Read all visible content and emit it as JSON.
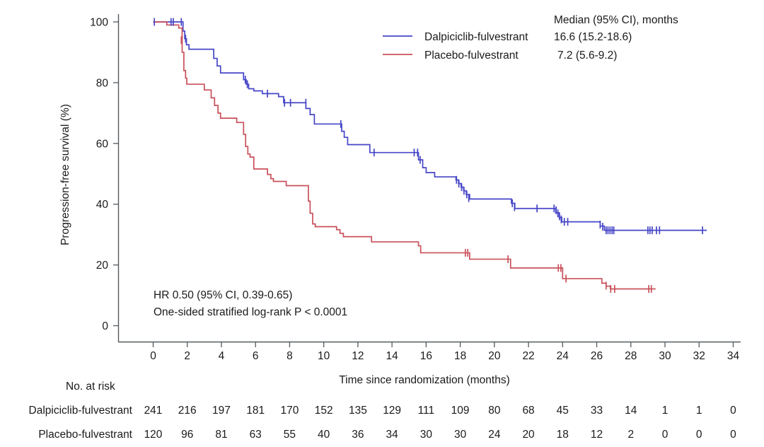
{
  "figure": {
    "background": "#ffffff",
    "text_color": "#1a1a1a",
    "axis_color": "#555a5e"
  },
  "chart_data": {
    "type": "line",
    "subtype": "kaplan-meier-step",
    "title": "",
    "xlabel": "Time since randomization (months)",
    "ylabel": "Progression-free survival (%)",
    "xlim": [
      0,
      34
    ],
    "ylim": [
      0,
      100
    ],
    "xticks": [
      0,
      2,
      4,
      6,
      8,
      10,
      12,
      14,
      16,
      18,
      20,
      22,
      24,
      26,
      28,
      30,
      32,
      34
    ],
    "yticks": [
      0,
      20,
      40,
      60,
      80,
      100
    ],
    "grid": false,
    "legend": {
      "position": "top-right",
      "header": "Median (95% CI), months",
      "entries": [
        {
          "label": "Dalpiciclib-fulvestrant",
          "median": "16.6 (15.2-18.6)",
          "color": "#4646c8"
        },
        {
          "label": "Placebo-fulvestrant",
          "median": "7.2 (5.6-9.2)",
          "color": "#c9505a"
        }
      ]
    },
    "annotations": [
      "HR 0.50 (95% CI, 0.39-0.65)",
      "One-sided stratified log-rank P < 0.0001"
    ],
    "series": [
      {
        "name": "Dalpiciclib-fulvestrant",
        "color": "#4646c8",
        "end_time": 32.45,
        "steps": [
          [
            0,
            100
          ],
          [
            1.75,
            97
          ],
          [
            1.85,
            94.5
          ],
          [
            1.95,
            92.5
          ],
          [
            2.1,
            91
          ],
          [
            3.55,
            88
          ],
          [
            3.75,
            85.5
          ],
          [
            3.95,
            83.2
          ],
          [
            5.3,
            81
          ],
          [
            5.45,
            79.5
          ],
          [
            5.6,
            78
          ],
          [
            5.9,
            77.3
          ],
          [
            6.4,
            76.4
          ],
          [
            7.35,
            75.4
          ],
          [
            7.65,
            73.4
          ],
          [
            8.95,
            71.5
          ],
          [
            9.2,
            69.5
          ],
          [
            9.45,
            66.4
          ],
          [
            11.05,
            64
          ],
          [
            11.2,
            62
          ],
          [
            11.4,
            59.6
          ],
          [
            12.7,
            57
          ],
          [
            15.55,
            54.6
          ],
          [
            15.8,
            52
          ],
          [
            16.0,
            50.4
          ],
          [
            16.5,
            49
          ],
          [
            17.75,
            48
          ],
          [
            17.9,
            46.8
          ],
          [
            18.05,
            45.6
          ],
          [
            18.2,
            44.4
          ],
          [
            18.35,
            43.2
          ],
          [
            18.55,
            41.7
          ],
          [
            21.0,
            40.3
          ],
          [
            21.2,
            38.6
          ],
          [
            23.6,
            37.2
          ],
          [
            23.8,
            35.6
          ],
          [
            23.95,
            34.2
          ],
          [
            26.2,
            32.8
          ],
          [
            26.45,
            31.4
          ]
        ],
        "censors": [
          [
            0.07,
            100
          ],
          [
            1.05,
            100
          ],
          [
            1.18,
            100
          ],
          [
            1.65,
            100
          ],
          [
            1.9,
            94.5
          ],
          [
            5.4,
            81
          ],
          [
            5.52,
            79.5
          ],
          [
            6.7,
            76.4
          ],
          [
            7.7,
            73.4
          ],
          [
            8.05,
            73.4
          ],
          [
            8.95,
            73.4
          ],
          [
            11.0,
            66.4
          ],
          [
            12.95,
            57
          ],
          [
            15.3,
            57
          ],
          [
            15.5,
            57
          ],
          [
            15.65,
            54.6
          ],
          [
            17.78,
            48
          ],
          [
            17.92,
            46.8
          ],
          [
            18.08,
            45.6
          ],
          [
            18.22,
            44.4
          ],
          [
            18.38,
            43.2
          ],
          [
            18.5,
            42
          ],
          [
            21.05,
            40.3
          ],
          [
            21.18,
            39
          ],
          [
            22.5,
            38.6
          ],
          [
            23.5,
            38.6
          ],
          [
            23.62,
            38
          ],
          [
            23.72,
            37
          ],
          [
            23.82,
            36
          ],
          [
            23.92,
            35
          ],
          [
            24.1,
            34.2
          ],
          [
            24.3,
            34.2
          ],
          [
            26.2,
            33.3
          ],
          [
            26.35,
            32.6
          ],
          [
            26.55,
            31.4
          ],
          [
            26.66,
            31.4
          ],
          [
            26.78,
            31.4
          ],
          [
            26.9,
            31.4
          ],
          [
            27.0,
            31.4
          ],
          [
            29.0,
            31.4
          ],
          [
            29.12,
            31.4
          ],
          [
            29.25,
            31.4
          ],
          [
            29.5,
            31.4
          ],
          [
            29.68,
            31.4
          ],
          [
            32.2,
            31.4
          ]
        ]
      },
      {
        "name": "Placebo-fulvestrant",
        "color": "#c9505a",
        "end_time": 29.45,
        "steps": [
          [
            0,
            100
          ],
          [
            0.8,
            99
          ],
          [
            1.5,
            98
          ],
          [
            1.7,
            90
          ],
          [
            1.8,
            84
          ],
          [
            1.9,
            81.5
          ],
          [
            1.97,
            79.5
          ],
          [
            3.0,
            77.6
          ],
          [
            3.4,
            75
          ],
          [
            3.6,
            72.5
          ],
          [
            3.8,
            70
          ],
          [
            3.95,
            68.3
          ],
          [
            4.9,
            66.9
          ],
          [
            5.3,
            63
          ],
          [
            5.42,
            59
          ],
          [
            5.55,
            56.5
          ],
          [
            5.68,
            55.5
          ],
          [
            5.9,
            51.6
          ],
          [
            6.7,
            49.8
          ],
          [
            6.9,
            48.4
          ],
          [
            7.05,
            47.5
          ],
          [
            7.8,
            46.1
          ],
          [
            9.1,
            41
          ],
          [
            9.2,
            37
          ],
          [
            9.35,
            33.5
          ],
          [
            9.5,
            32.6
          ],
          [
            10.75,
            31.6
          ],
          [
            10.95,
            30.4
          ],
          [
            11.15,
            29.3
          ],
          [
            12.8,
            27.6
          ],
          [
            15.55,
            26.3
          ],
          [
            15.68,
            24
          ],
          [
            18.55,
            21.9
          ],
          [
            20.95,
            19
          ],
          [
            24.0,
            15.5
          ],
          [
            26.3,
            14
          ],
          [
            26.55,
            13
          ],
          [
            26.8,
            12.1
          ]
        ],
        "censors": [
          [
            1.65,
            94
          ],
          [
            18.3,
            24
          ],
          [
            18.44,
            24
          ],
          [
            20.8,
            21.9
          ],
          [
            23.75,
            19
          ],
          [
            23.9,
            19
          ],
          [
            24.2,
            15.5
          ],
          [
            26.55,
            13.2
          ],
          [
            26.82,
            12.1
          ],
          [
            27.05,
            12.1
          ],
          [
            29.05,
            12.1
          ],
          [
            29.2,
            12.1
          ]
        ]
      }
    ],
    "risk_table": {
      "title": "No. at risk",
      "times": [
        0,
        2,
        4,
        6,
        8,
        10,
        12,
        14,
        16,
        18,
        20,
        22,
        24,
        26,
        28,
        30,
        32,
        34
      ],
      "rows": [
        {
          "label": "Dalpiciclib-fulvestrant",
          "counts": [
            241,
            216,
            197,
            181,
            170,
            152,
            135,
            129,
            111,
            109,
            80,
            68,
            45,
            33,
            14,
            1,
            1,
            0
          ]
        },
        {
          "label": "Placebo-fulvestrant",
          "counts": [
            120,
            96,
            81,
            63,
            55,
            40,
            36,
            34,
            30,
            30,
            24,
            20,
            18,
            12,
            2,
            0,
            0,
            0
          ]
        }
      ]
    }
  }
}
